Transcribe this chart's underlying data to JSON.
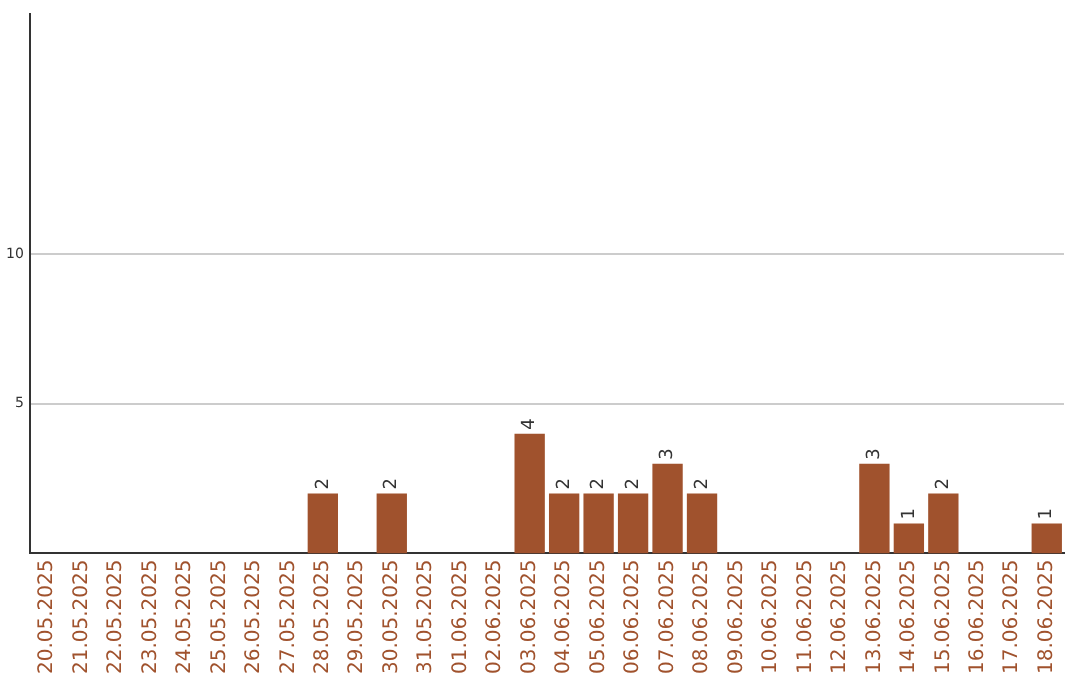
{
  "chart_data": {
    "type": "bar",
    "categories": [
      "20.05.2025",
      "21.05.2025",
      "22.05.2025",
      "23.05.2025",
      "24.05.2025",
      "25.05.2025",
      "26.05.2025",
      "27.05.2025",
      "28.05.2025",
      "29.05.2025",
      "30.05.2025",
      "31.05.2025",
      "01.06.2025",
      "02.06.2025",
      "03.06.2025",
      "04.06.2025",
      "05.06.2025",
      "06.06.2025",
      "07.06.2025",
      "08.06.2025",
      "09.06.2025",
      "10.06.2025",
      "11.06.2025",
      "12.06.2025",
      "13.06.2025",
      "14.06.2025",
      "15.06.2025",
      "16.06.2025",
      "17.06.2025",
      "18.06.2025"
    ],
    "values": [
      0,
      0,
      0,
      0,
      0,
      0,
      0,
      0,
      2,
      0,
      2,
      0,
      0,
      0,
      4,
      2,
      2,
      2,
      3,
      2,
      0,
      0,
      0,
      0,
      3,
      1,
      2,
      0,
      0,
      1
    ],
    "value_labels": [
      null,
      null,
      null,
      null,
      null,
      null,
      null,
      null,
      "2",
      null,
      "2",
      null,
      null,
      null,
      "4",
      "2",
      "2",
      "2",
      "3",
      "2",
      null,
      null,
      null,
      null,
      "3",
      "1",
      "2",
      null,
      null,
      "1"
    ],
    "color": "#a0522d",
    "ylim": [
      0,
      18
    ],
    "yticks": [
      5,
      10
    ],
    "grid": "y"
  }
}
